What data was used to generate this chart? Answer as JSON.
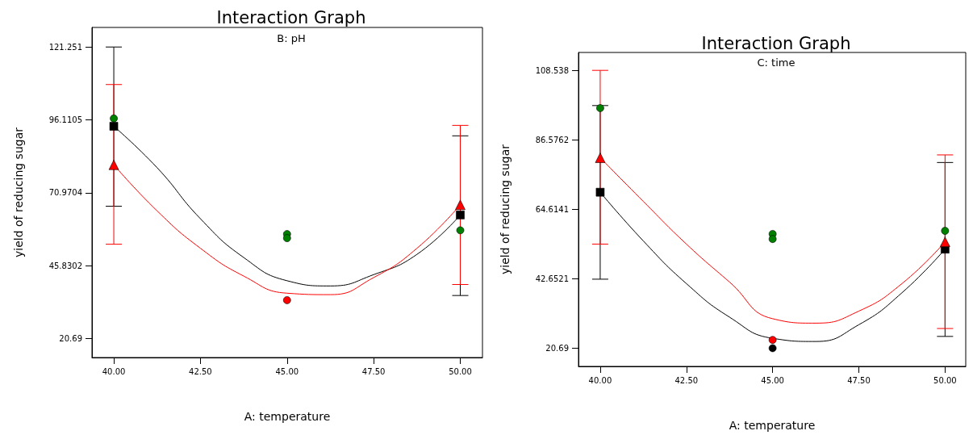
{
  "chart_data": [
    {
      "type": "line",
      "title": "Interaction Graph",
      "subtitle": "B: pH",
      "xlabel": "A: temperature",
      "ylabel": "yield of reducing sugar",
      "xlim": [
        39.37,
        50.64
      ],
      "xticks": [
        {
          "value": 40,
          "label": "40.00"
        },
        {
          "value": 42.5,
          "label": "42.50"
        },
        {
          "value": 45,
          "label": "45.00"
        },
        {
          "value": 47.5,
          "label": "47.50"
        },
        {
          "value": 50,
          "label": "50.00"
        }
      ],
      "ylim": [
        14.1,
        128
      ],
      "yticks": [
        20.69,
        45.8302,
        70.9704,
        96.1105,
        121.251
      ],
      "grid": false,
      "series": [
        {
          "type": "line",
          "color": "#000000",
          "marker": "none",
          "x": [
            40,
            41.25,
            42.5,
            43.75,
            45,
            46.25,
            47.5,
            48.75,
            50
          ],
          "values": [
            93.9,
            79.6,
            62.0,
            48.6,
            40.6,
            38.8,
            42.7,
            49.7,
            63.3
          ]
        },
        {
          "type": "line",
          "color": "#ff0000",
          "marker": "none",
          "x": [
            40,
            41.25,
            42.5,
            43.75,
            45,
            46.25,
            47.5,
            48.75,
            50
          ],
          "values": [
            80.6,
            64.7,
            51.8,
            42.2,
            36.3,
            35.8,
            41.7,
            51.8,
            66.8
          ]
        },
        {
          "type": "scatter",
          "color": "#000000",
          "marker": "square",
          "x": [
            40,
            50
          ],
          "values": [
            93.9,
            63.3
          ],
          "errors": [
            [
              66.3,
              121.251
            ],
            [
              35.5,
              90.6
            ]
          ]
        },
        {
          "type": "scatter",
          "color": "#ff0000",
          "marker": "triangle",
          "x": [
            40,
            50
          ],
          "values": [
            80.6,
            66.8
          ],
          "errors": [
            [
              53.2,
              108.3
            ],
            [
              39.3,
              94.2
            ]
          ]
        },
        {
          "type": "scatter",
          "color": "#008000",
          "marker": "circle",
          "x": [
            40,
            45,
            45,
            50
          ],
          "values": [
            96.6,
            56.7,
            55.3,
            58.0
          ]
        },
        {
          "type": "scatter",
          "color": "#ff0000",
          "marker": "circle",
          "x": [
            45
          ],
          "values": [
            33.9
          ]
        }
      ]
    },
    {
      "type": "line",
      "title": "Interaction Graph",
      "subtitle": "C: time",
      "xlabel": "A: temperature",
      "ylabel": "yield of reducing sugar",
      "xlim": [
        39.37,
        50.6
      ],
      "xticks": [
        {
          "value": 40,
          "label": "40.00"
        },
        {
          "value": 42.5,
          "label": "42.50"
        },
        {
          "value": 45,
          "label": "45.00"
        },
        {
          "value": 47.5,
          "label": "47.50"
        },
        {
          "value": 50,
          "label": "50.00"
        }
      ],
      "ylim": [
        14.92,
        114.2
      ],
      "yticks": [
        20.69,
        42.6521,
        64.6141,
        86.5762,
        108.538
      ],
      "grid": false,
      "series": [
        {
          "type": "line",
          "color": "#000000",
          "marker": "none",
          "x": [
            40,
            41.25,
            42.5,
            43.75,
            45,
            46.25,
            47.5,
            48.75,
            50
          ],
          "values": [
            70.0,
            54.6,
            41.1,
            30.5,
            23.8,
            22.8,
            28.1,
            38.2,
            52.0
          ]
        },
        {
          "type": "line",
          "color": "#ff0000",
          "marker": "none",
          "x": [
            40,
            41.25,
            42.5,
            43.75,
            45,
            46.25,
            47.5,
            48.75,
            50
          ],
          "values": [
            80.9,
            67.1,
            53.6,
            41.6,
            30.0,
            28.6,
            32.4,
            41.1,
            54.3
          ]
        },
        {
          "type": "scatter",
          "color": "#000000",
          "marker": "square",
          "x": [
            40,
            50
          ],
          "values": [
            70.0,
            52.0
          ],
          "errors": [
            [
              42.5,
              97.4
            ],
            [
              24.4,
              79.4
            ]
          ]
        },
        {
          "type": "scatter",
          "color": "#ff0000",
          "marker": "triangle",
          "x": [
            40,
            50
          ],
          "values": [
            80.9,
            54.3
          ],
          "errors": [
            [
              53.6,
              108.538
            ],
            [
              26.9,
              81.8
            ]
          ]
        },
        {
          "type": "scatter",
          "color": "#008000",
          "marker": "circle",
          "x": [
            40,
            45,
            45,
            50
          ],
          "values": [
            96.6,
            56.8,
            55.2,
            57.8
          ]
        },
        {
          "type": "scatter",
          "color": "#ff0000",
          "marker": "circle",
          "x": [
            45
          ],
          "values": [
            23.3
          ]
        },
        {
          "type": "scatter",
          "color": "#000000",
          "marker": "circle",
          "x": [
            45
          ],
          "values": [
            20.69
          ]
        }
      ]
    }
  ]
}
